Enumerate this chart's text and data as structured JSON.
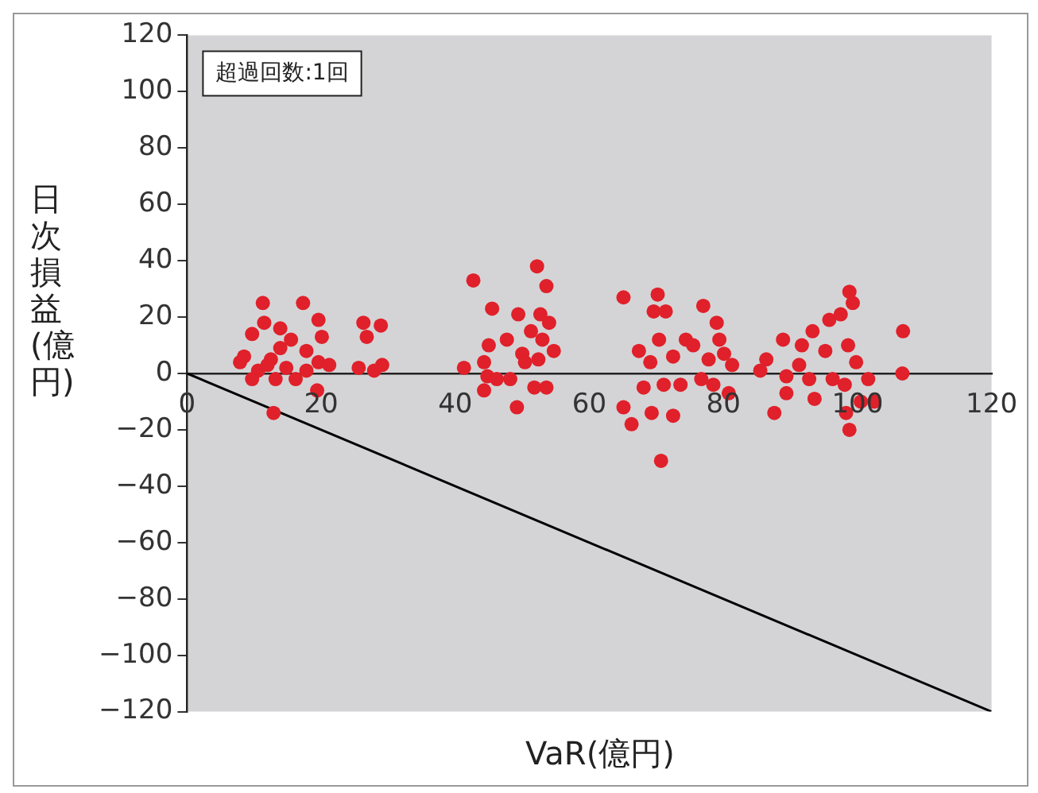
{
  "chart_data": {
    "type": "scatter",
    "xlabel": "VaR(億円)",
    "ylabel": "日次損益(億円)",
    "annotations": [
      "超過回数:1回"
    ],
    "xlim": [
      0,
      120
    ],
    "xticks": [
      0,
      20,
      40,
      60,
      80,
      100,
      120
    ],
    "ylim": [
      -120,
      120
    ],
    "yticks": [
      -120,
      -100,
      -80,
      -60,
      -40,
      -20,
      0,
      20,
      40,
      60,
      80,
      100,
      120
    ],
    "grid": false,
    "legend": false,
    "series": [
      {
        "type": "scatter",
        "marker": "circle",
        "color": "#e0202a",
        "x": [
          11.3,
          17.3,
          11.5,
          19.6,
          20.1,
          9.7,
          8.5,
          12.5,
          13.9,
          15.5,
          17.8,
          19.6,
          21.2,
          10.6,
          13.2,
          16.2,
          12.9,
          19.4,
          26.3,
          28.9,
          26.8,
          25.6,
          27.9,
          29.1,
          7.9,
          12,
          14.8,
          9.7,
          17.8,
          13.9,
          42.7,
          52.2,
          53.6,
          45.5,
          49.4,
          52.7,
          54,
          47.7,
          51.3,
          54.7,
          45,
          44.3,
          53,
          50,
          41.3,
          44.8,
          46.2,
          48.2,
          49.2,
          51.8,
          53.6,
          44.3,
          50.4,
          52.4,
          65.1,
          70.2,
          69.6,
          71.4,
          77,
          79,
          67.4,
          70.4,
          74.4,
          75.5,
          79.4,
          80.1,
          81.3,
          72.5,
          69.1,
          65.1,
          66.3,
          69.3,
          72.5,
          70.7,
          68.1,
          71.1,
          73.6,
          76.7,
          78.5,
          80.8,
          77.8,
          98.8,
          99.3,
          97.5,
          95.8,
          106.8,
          93.3,
          88.9,
          91.7,
          95.2,
          98.6,
          99.8,
          101.6,
          106.7,
          86.4,
          85.5,
          89.4,
          91.3,
          92.8,
          96.3,
          87.6,
          89.4,
          93.6,
          98.1,
          98.3,
          98.8,
          100.5,
          102.5
        ],
        "values": [
          25,
          25,
          18,
          19,
          13,
          14,
          6,
          5,
          9,
          12,
          8,
          4,
          3,
          1,
          -2,
          -2,
          -14,
          -6,
          18,
          17,
          13,
          2,
          1,
          3,
          4,
          3,
          2,
          -2,
          1,
          16,
          33,
          38,
          31,
          23,
          21,
          21,
          18,
          12,
          15,
          8,
          10,
          4,
          12,
          7,
          2,
          -1,
          -2,
          -2,
          -12,
          -5,
          -5,
          -6,
          4,
          5,
          27,
          28,
          22,
          22,
          24,
          18,
          8,
          12,
          12,
          10,
          12,
          7,
          3,
          6,
          4,
          -12,
          -18,
          -14,
          -15,
          -31,
          -5,
          -4,
          -4,
          -2,
          -4,
          -7,
          5,
          29,
          25,
          21,
          19,
          15,
          15,
          12,
          10,
          8,
          10,
          4,
          -2,
          0,
          5,
          1,
          -1,
          3,
          -2,
          -2,
          -14,
          -7,
          -9,
          -4,
          -14,
          -20,
          -10,
          -10
        ]
      },
      {
        "type": "line",
        "color": "#000000",
        "x": [
          0,
          120
        ],
        "values": [
          0,
          -120
        ]
      }
    ]
  }
}
